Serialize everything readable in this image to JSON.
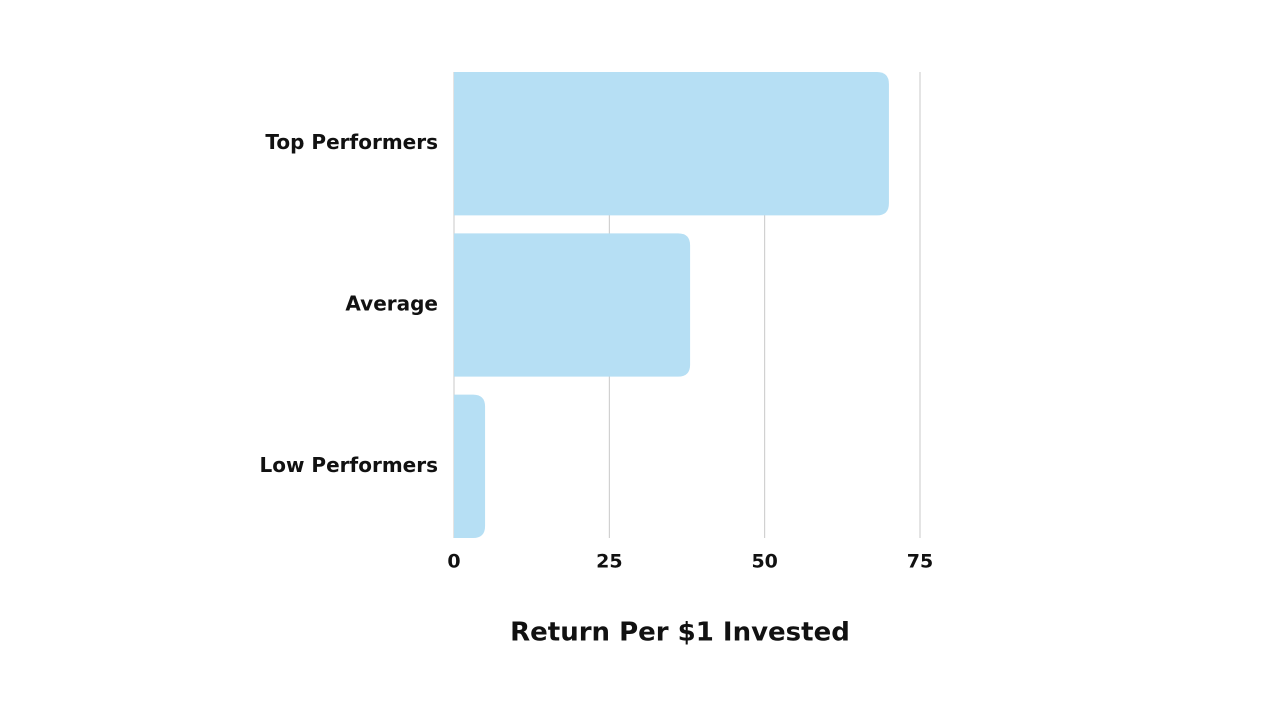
{
  "chart_data": {
    "type": "bar",
    "orientation": "horizontal",
    "x_label": "Return Per $1 Invested",
    "categories": [
      "Top Performers",
      "Average",
      "Low Performers"
    ],
    "values": [
      70,
      38,
      5
    ],
    "color": "#b6dff4",
    "xlim": [
      0,
      75
    ],
    "xticks": [
      0,
      25,
      50,
      75
    ],
    "grid": true
  }
}
